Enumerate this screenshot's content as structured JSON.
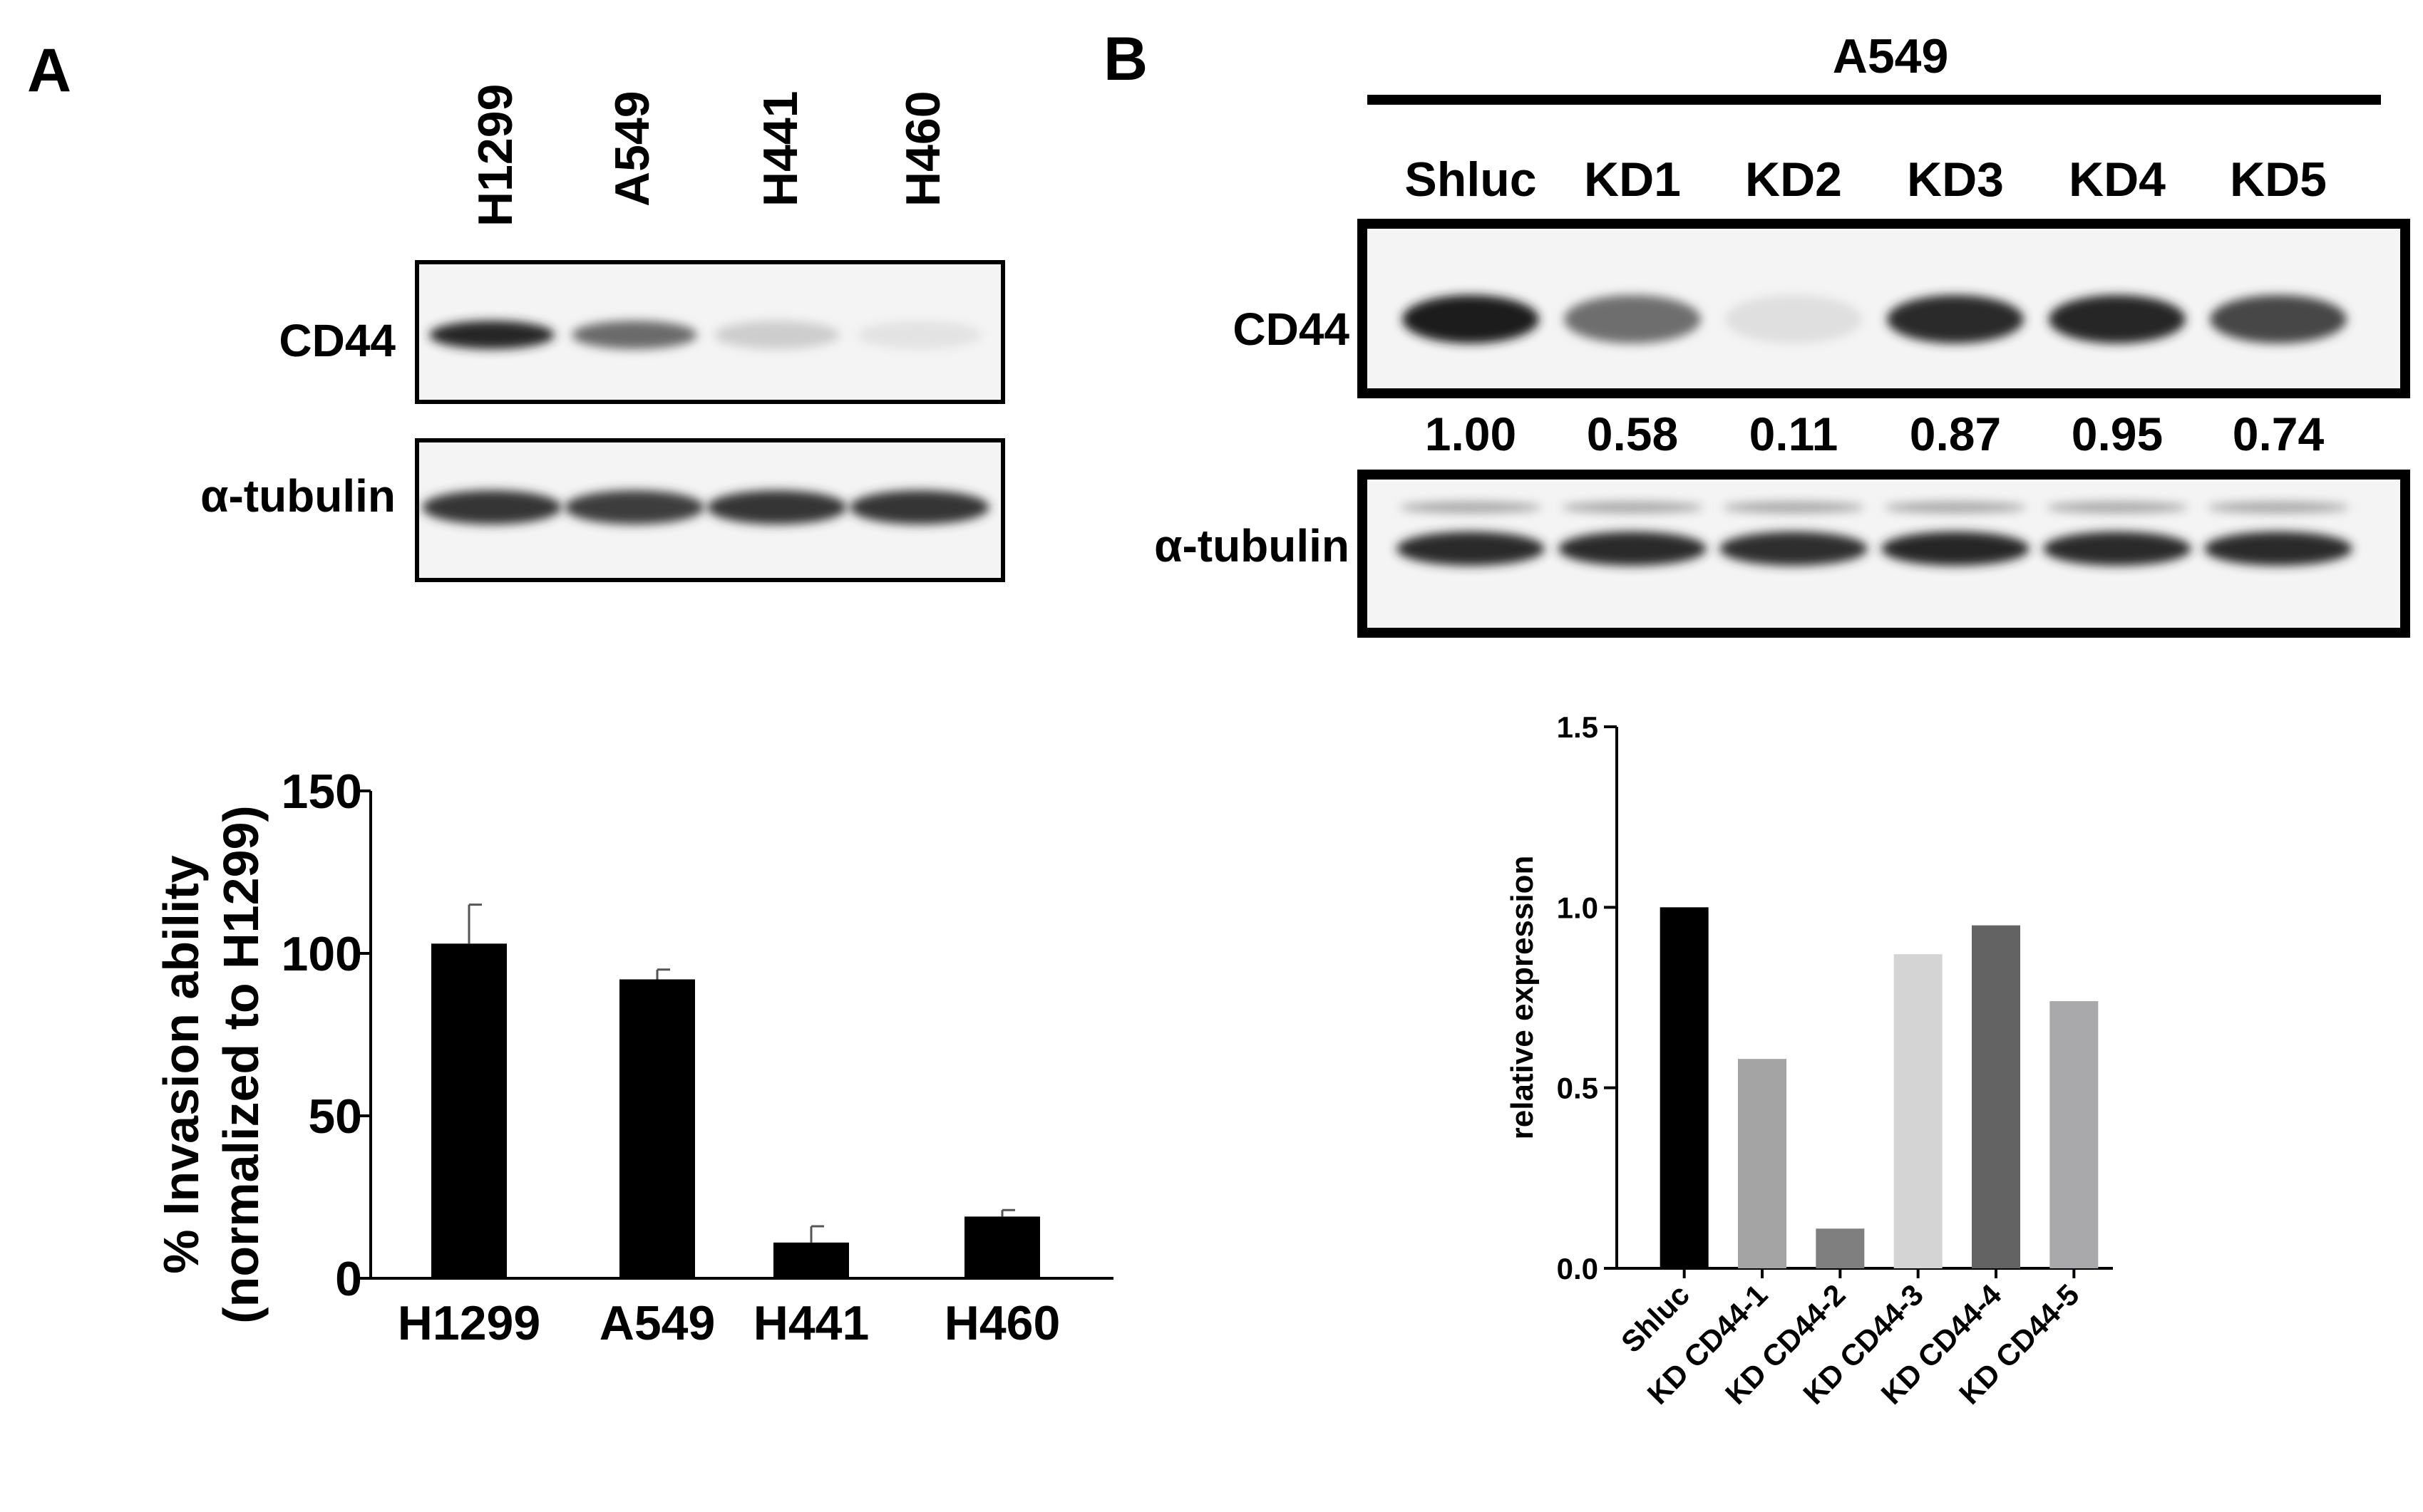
{
  "panelA": {
    "letter": "A",
    "blot": {
      "lanes": [
        "H1299",
        "A549",
        "H441",
        "H460"
      ],
      "row_labels": [
        "CD44",
        "α-tubulin"
      ],
      "cd44_band_darkness": [
        0.92,
        0.62,
        0.18,
        0.08
      ],
      "tubulin_band_darkness": [
        0.85,
        0.82,
        0.85,
        0.85
      ]
    }
  },
  "panelB": {
    "letter": "B",
    "blot": {
      "cell_line": "A549",
      "lanes": [
        "Shluc",
        "KD1",
        "KD2",
        "KD3",
        "KD4",
        "KD5"
      ],
      "row_labels": [
        "CD44",
        "α-tubulin"
      ],
      "quant": [
        "1.00",
        "0.58",
        "0.11",
        "0.87",
        "0.95",
        "0.74"
      ],
      "cd44_band_darkness": [
        0.95,
        0.6,
        0.1,
        0.9,
        0.92,
        0.78
      ],
      "tubulin_band_darkness": [
        0.9,
        0.9,
        0.88,
        0.92,
        0.9,
        0.9
      ]
    }
  },
  "chart_data": [
    {
      "type": "bar",
      "categories": [
        "H1299",
        "A549",
        "H441",
        "H460"
      ],
      "values": [
        103,
        92,
        11,
        19
      ],
      "errors": [
        12,
        3,
        5,
        2
      ],
      "ylabel_line1": "% Invasion ability",
      "ylabel_line2": "(normalized to H1299)",
      "ylim": [
        0,
        150
      ],
      "yticks": [
        0,
        50,
        100,
        150
      ],
      "bar_color": "#000000"
    },
    {
      "type": "bar",
      "categories": [
        "Shluc",
        "KD CD44-1",
        "KD CD44-2",
        "KD CD44-3",
        "KD CD44-4",
        "KD CD44-5"
      ],
      "values": [
        1.0,
        0.58,
        0.11,
        0.87,
        0.95,
        0.74
      ],
      "ylabel": "relative expression",
      "ylim": [
        0,
        1.5
      ],
      "yticks": [
        "0.0",
        "0.5",
        "1.0",
        "1.5"
      ],
      "bar_colors": [
        "#000000",
        "#a4a4a4",
        "#7f7f7f",
        "#d4d4d4",
        "#636363",
        "#a9a9ab"
      ]
    }
  ]
}
